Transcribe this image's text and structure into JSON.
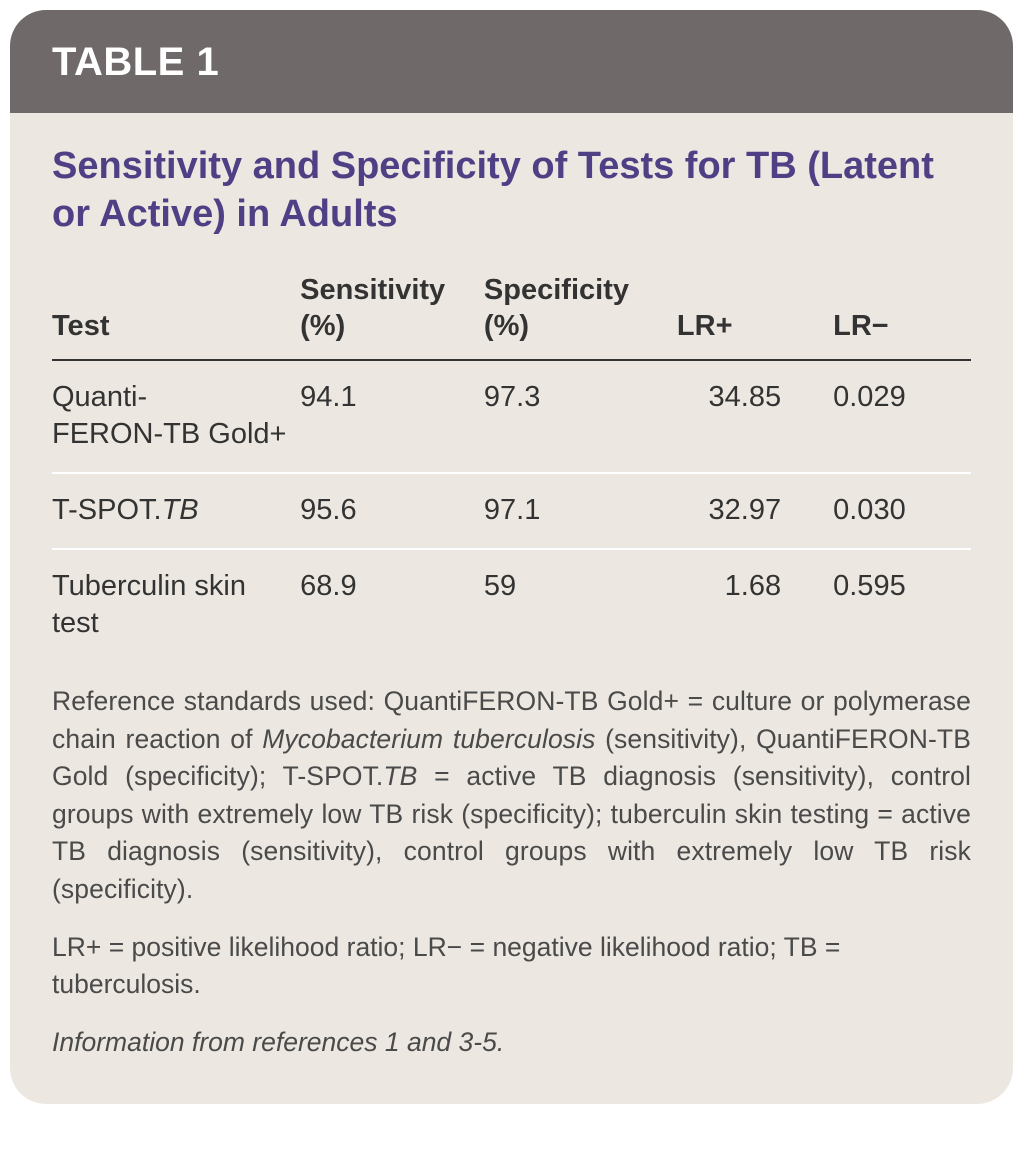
{
  "header": {
    "label": "TABLE 1"
  },
  "title": "Sensitivity and Specificity of Tests for TB (Latent or Active) in Adults",
  "columns": {
    "test": "Test",
    "sensitivity": "Sensitivity (%)",
    "specificity": "Specificity (%)",
    "lrp": "LR+",
    "lrm": "LR−"
  },
  "rows": [
    {
      "test_html": "Quanti-<br>FERON-TB Gold+",
      "sensitivity": "94.1",
      "specificity": "97.3",
      "lrp": "34.85",
      "lrm": "0.029"
    },
    {
      "test_html": "T-SPOT.<span class=\"italic\">TB</span>",
      "sensitivity": "95.6",
      "specificity": "97.1",
      "lrp": "32.97",
      "lrm": "0.030"
    },
    {
      "test_html": "Tuberculin skin test",
      "sensitivity": "68.9",
      "specificity": "59",
      "lrp": "1.68",
      "lrm": "0.595"
    }
  ],
  "note1_html": "Reference standards used: QuantiFERON-TB Gold+ = culture or polymerase chain reaction of <span class=\"italic\">Mycobacterium tuberculosis</span> (sensitivity), QuantiFERON-TB Gold (specificity); T-SPOT.<span class=\"italic\">TB</span> = active TB diagnosis (sensitivity), control groups with extremely low TB risk (specificity); tuberculin skin testing = active TB diagnosis (sensitivity), control groups with extremely low TB risk (specificity).",
  "note2": "LR+ = positive likelihood ratio; LR− = negative likelihood ratio; TB = tuberculosis.",
  "note3": "Information from references 1 and 3-5.",
  "colors": {
    "card_bg": "#ece8e1",
    "header_bg": "#6f6a69",
    "header_text": "#ffffff",
    "title_color": "#4f3f84",
    "text_color": "#333333",
    "note_color": "#4a4a4a",
    "row_divider": "#ffffff"
  }
}
